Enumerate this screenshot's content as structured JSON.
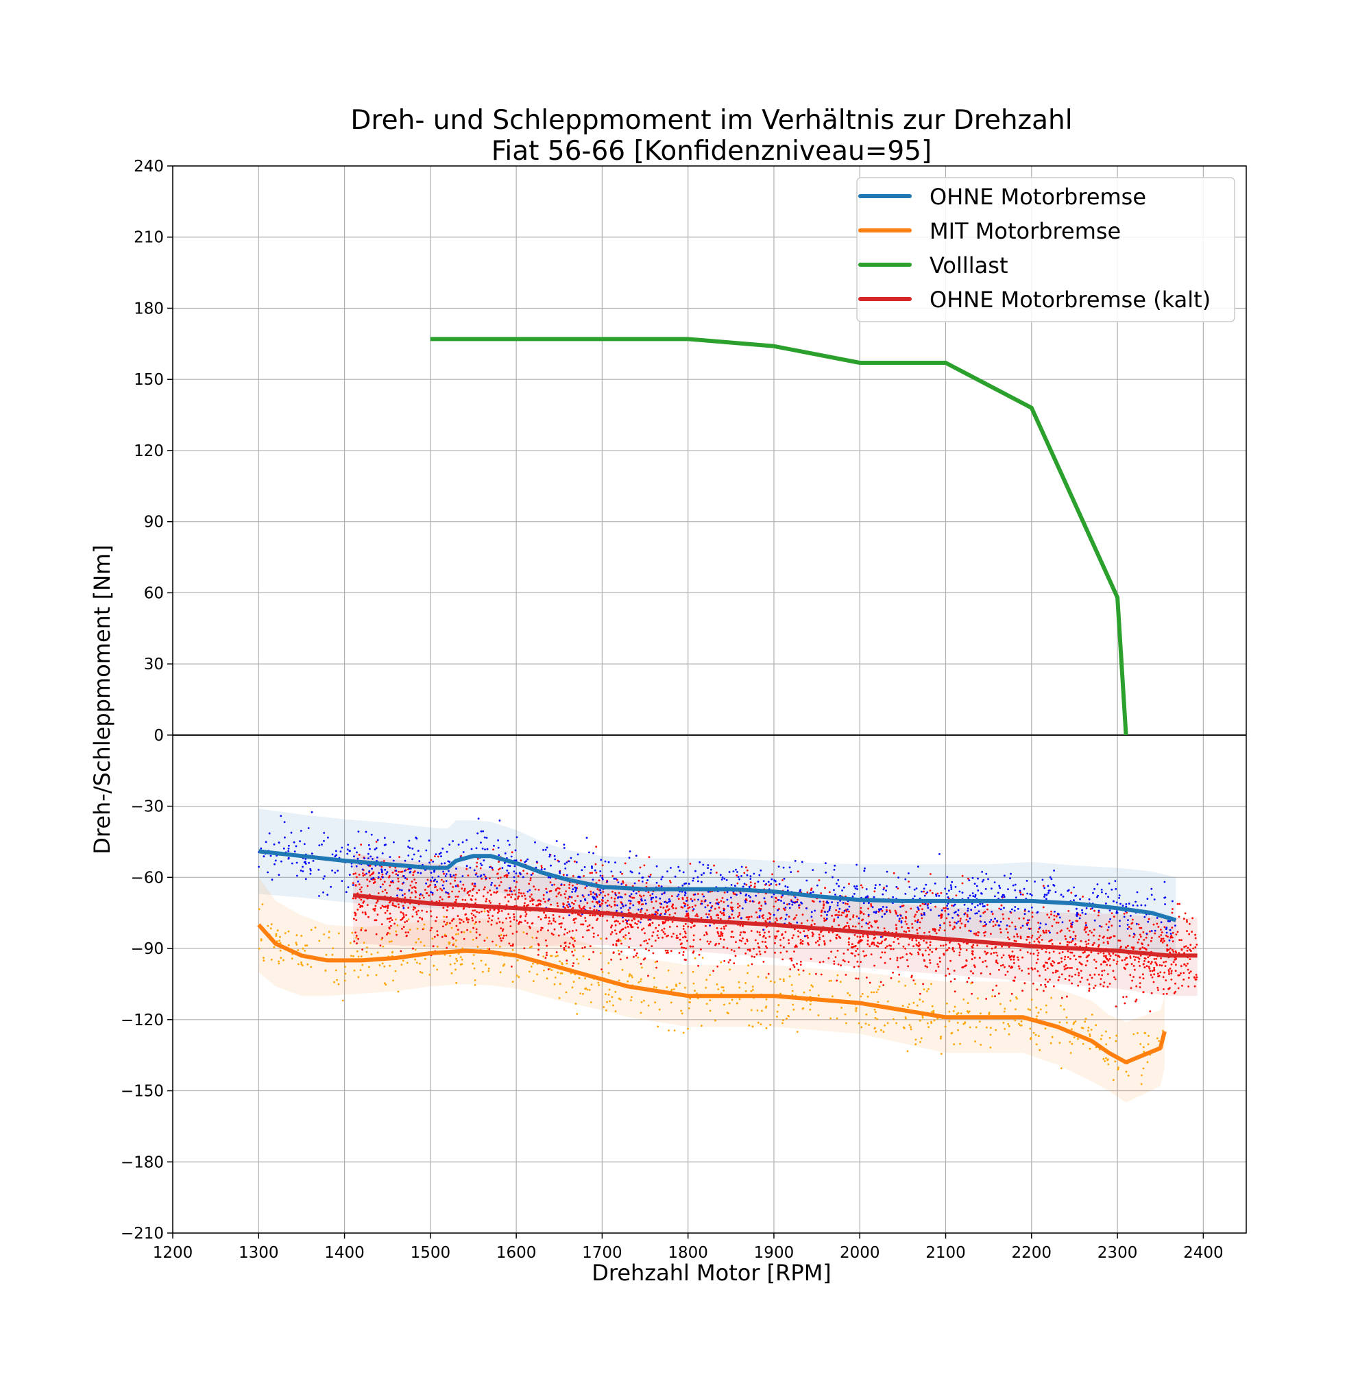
{
  "chart_data": {
    "type": "line",
    "title": "Dreh- und Schleppmoment im Verhältnis zur Drehzahl",
    "subtitle": "Fiat 56-66 [Konfidenzniveau=95]",
    "xlabel": "Drehzahl Motor [RPM]",
    "ylabel": "Dreh-/Schleppmoment [Nm]",
    "xlim": [
      1200,
      2450
    ],
    "ylim": [
      -210,
      240
    ],
    "xticks": [
      1200,
      1300,
      1400,
      1500,
      1600,
      1700,
      1800,
      1900,
      2000,
      2100,
      2200,
      2300,
      2400
    ],
    "yticks": [
      -210,
      -180,
      -150,
      -120,
      -90,
      -60,
      -30,
      0,
      30,
      60,
      90,
      120,
      150,
      180,
      210,
      240
    ],
    "grid": true,
    "legend_position": "top-right",
    "series": [
      {
        "name": "OHNE Motorbremse",
        "color": "#1f77b4",
        "points_color": "#0000ff",
        "x": [
          1300,
          1350,
          1400,
          1450,
          1500,
          1520,
          1530,
          1550,
          1570,
          1600,
          1630,
          1660,
          1700,
          1750,
          1800,
          1850,
          1900,
          1950,
          2000,
          2050,
          2100,
          2150,
          2200,
          2250,
          2300,
          2340,
          2368
        ],
        "y": [
          -49,
          -51,
          -53,
          -54.5,
          -56,
          -56,
          -53,
          -51,
          -51,
          -54,
          -58,
          -61,
          -64,
          -65,
          -65,
          -65,
          -66,
          -68,
          -69.5,
          -70,
          -70,
          -70,
          -70,
          -71,
          -73,
          -75,
          -78
        ],
        "band_upper": [
          -31,
          -33.5,
          -35.5,
          -37,
          -39,
          -39.5,
          -36,
          -36,
          -36.5,
          -40,
          -45,
          -48.5,
          -51,
          -52,
          -52,
          -52,
          -53,
          -54,
          -54.5,
          -54.5,
          -54.5,
          -54.5,
          -53.5,
          -55,
          -56,
          -57.5,
          -60
        ],
        "band_lower": [
          -67,
          -68.5,
          -70.5,
          -72,
          -73,
          -73,
          -70,
          -66,
          -65.5,
          -68,
          -71,
          -73.5,
          -77,
          -78,
          -78,
          -78,
          -79,
          -82,
          -84.5,
          -85.5,
          -85.5,
          -85.5,
          -86.5,
          -87,
          -90,
          -92.5,
          -96
        ]
      },
      {
        "name": "MIT Motorbremse",
        "color": "#ff7f0e",
        "points_color": "#ffa500",
        "x": [
          1300,
          1320,
          1350,
          1380,
          1420,
          1460,
          1500,
          1540,
          1570,
          1600,
          1650,
          1700,
          1730,
          1800,
          1900,
          2000,
          2100,
          2190,
          2230,
          2270,
          2290,
          2310,
          2350,
          2355
        ],
        "y": [
          -80,
          -88,
          -93,
          -95,
          -95,
          -94,
          -92,
          -91,
          -91.5,
          -93,
          -98,
          -103,
          -106,
          -110,
          -110,
          -113,
          -119,
          -119,
          -123,
          -129,
          -134,
          -138,
          -132,
          -125
        ],
        "band_upper": [
          -60,
          -70,
          -76,
          -80,
          -81,
          -80,
          -78,
          -77,
          -77.5,
          -79,
          -84,
          -90,
          -93,
          -97,
          -97,
          -100,
          -104,
          -104,
          -107,
          -112,
          -118,
          -121,
          -116,
          -110
        ],
        "band_lower": [
          -100,
          -106,
          -110,
          -110,
          -109,
          -108,
          -106,
          -105,
          -105.5,
          -107,
          -112,
          -116,
          -119,
          -123,
          -123,
          -126,
          -134,
          -134,
          -139,
          -146,
          -150,
          -155,
          -148,
          -140
        ]
      },
      {
        "name": "Volllast",
        "color": "#2ca02c",
        "x": [
          1500,
          1800,
          1900,
          2000,
          2100,
          2200,
          2300,
          2310
        ],
        "y": [
          167,
          167,
          164,
          157,
          157,
          138,
          58,
          0
        ]
      },
      {
        "name": "OHNE Motorbremse (kalt)",
        "color": "#d62728",
        "points_color": "#ff0000",
        "x": [
          1410,
          1450,
          1500,
          1550,
          1600,
          1700,
          1800,
          1900,
          2000,
          2100,
          2200,
          2300,
          2360,
          2393
        ],
        "y": [
          -67.5,
          -69,
          -71,
          -72,
          -73,
          -75,
          -78,
          -80,
          -83,
          -86,
          -89,
          -91,
          -93,
          -93
        ],
        "band_upper": [
          -50,
          -52,
          -54,
          -56,
          -58,
          -61,
          -64,
          -67,
          -70,
          -72.5,
          -74.5,
          -75.5,
          -77,
          -77
        ],
        "band_lower": [
          -88,
          -88.5,
          -89.5,
          -89.5,
          -89,
          -88.5,
          -91,
          -94,
          -98,
          -101,
          -104,
          -107,
          -110,
          -110
        ]
      }
    ]
  }
}
